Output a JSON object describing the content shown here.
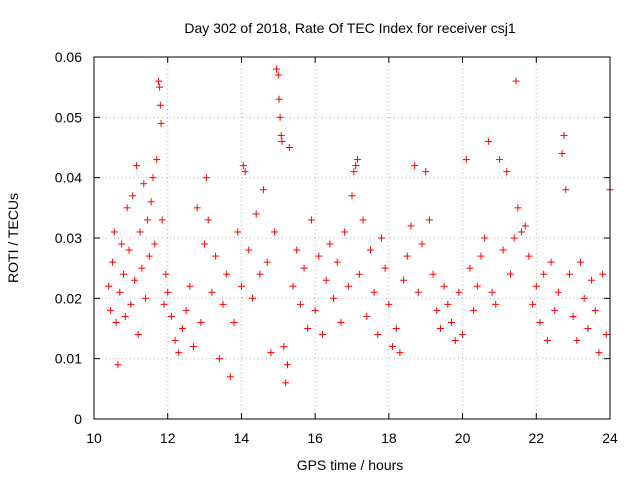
{
  "chart_data": {
    "type": "scatter",
    "title": "Day 302 of 2018, Rate Of TEC Index for receiver csj1",
    "xlabel": "GPS time / hours",
    "ylabel": "ROTI / TECUs",
    "xlim": [
      10,
      24
    ],
    "ylim": [
      0,
      0.06
    ],
    "xticks": [
      10,
      12,
      14,
      16,
      18,
      20,
      22,
      24
    ],
    "xtick_labels": [
      "10",
      "12",
      "14",
      "16",
      "18",
      "20",
      "22",
      "24"
    ],
    "yticks": [
      0,
      0.01,
      0.02,
      0.03,
      0.04,
      0.05,
      0.06
    ],
    "ytick_labels": [
      "0",
      "0.01",
      "0.02",
      "0.03",
      "0.04",
      "0.05",
      "0.06"
    ],
    "grid": true,
    "marker": "+",
    "marker_color": "#ff0000",
    "series": [
      {
        "name": "ROTI",
        "points": [
          [
            10.4,
            0.022
          ],
          [
            10.45,
            0.018
          ],
          [
            10.5,
            0.026
          ],
          [
            10.55,
            0.031
          ],
          [
            10.6,
            0.016
          ],
          [
            10.65,
            0.009
          ],
          [
            10.7,
            0.021
          ],
          [
            10.75,
            0.029
          ],
          [
            10.8,
            0.024
          ],
          [
            10.85,
            0.017
          ],
          [
            10.9,
            0.035
          ],
          [
            10.95,
            0.028
          ],
          [
            11.0,
            0.019
          ],
          [
            11.05,
            0.037
          ],
          [
            11.1,
            0.023
          ],
          [
            11.15,
            0.042
          ],
          [
            11.2,
            0.014
          ],
          [
            11.25,
            0.031
          ],
          [
            11.3,
            0.025
          ],
          [
            11.35,
            0.039
          ],
          [
            11.4,
            0.02
          ],
          [
            11.45,
            0.033
          ],
          [
            11.5,
            0.027
          ],
          [
            11.55,
            0.036
          ],
          [
            11.6,
            0.04
          ],
          [
            11.65,
            0.029
          ],
          [
            11.7,
            0.043
          ],
          [
            11.75,
            0.056
          ],
          [
            11.78,
            0.055
          ],
          [
            11.8,
            0.052
          ],
          [
            11.82,
            0.049
          ],
          [
            11.85,
            0.033
          ],
          [
            11.9,
            0.019
          ],
          [
            11.95,
            0.024
          ],
          [
            12.0,
            0.021
          ],
          [
            12.1,
            0.017
          ],
          [
            12.2,
            0.013
          ],
          [
            12.3,
            0.011
          ],
          [
            12.4,
            0.015
          ],
          [
            12.5,
            0.018
          ],
          [
            12.6,
            0.022
          ],
          [
            12.7,
            0.012
          ],
          [
            12.8,
            0.035
          ],
          [
            12.9,
            0.016
          ],
          [
            13.0,
            0.029
          ],
          [
            13.05,
            0.04
          ],
          [
            13.1,
            0.033
          ],
          [
            13.2,
            0.021
          ],
          [
            13.3,
            0.027
          ],
          [
            13.4,
            0.01
          ],
          [
            13.5,
            0.019
          ],
          [
            13.6,
            0.024
          ],
          [
            13.7,
            0.007
          ],
          [
            13.8,
            0.016
          ],
          [
            13.9,
            0.031
          ],
          [
            14.0,
            0.022
          ],
          [
            14.05,
            0.042
          ],
          [
            14.1,
            0.041
          ],
          [
            14.2,
            0.028
          ],
          [
            14.3,
            0.02
          ],
          [
            14.4,
            0.034
          ],
          [
            14.5,
            0.024
          ],
          [
            14.6,
            0.038
          ],
          [
            14.7,
            0.026
          ],
          [
            14.8,
            0.011
          ],
          [
            14.9,
            0.031
          ],
          [
            14.95,
            0.058
          ],
          [
            15.0,
            0.057
          ],
          [
            15.02,
            0.053
          ],
          [
            15.05,
            0.05
          ],
          [
            15.08,
            0.047
          ],
          [
            15.1,
            0.046
          ],
          [
            15.15,
            0.012
          ],
          [
            15.2,
            0.006
          ],
          [
            15.25,
            0.009
          ],
          [
            15.3,
            0.045
          ],
          [
            15.4,
            0.022
          ],
          [
            15.5,
            0.028
          ],
          [
            15.6,
            0.019
          ],
          [
            15.7,
            0.025
          ],
          [
            15.8,
            0.015
          ],
          [
            15.9,
            0.033
          ],
          [
            16.0,
            0.018
          ],
          [
            16.1,
            0.027
          ],
          [
            16.2,
            0.014
          ],
          [
            16.3,
            0.023
          ],
          [
            16.4,
            0.029
          ],
          [
            16.5,
            0.02
          ],
          [
            16.6,
            0.026
          ],
          [
            16.7,
            0.016
          ],
          [
            16.8,
            0.031
          ],
          [
            16.9,
            0.022
          ],
          [
            17.0,
            0.037
          ],
          [
            17.05,
            0.041
          ],
          [
            17.1,
            0.042
          ],
          [
            17.15,
            0.043
          ],
          [
            17.2,
            0.024
          ],
          [
            17.3,
            0.033
          ],
          [
            17.4,
            0.017
          ],
          [
            17.5,
            0.028
          ],
          [
            17.6,
            0.021
          ],
          [
            17.7,
            0.014
          ],
          [
            17.8,
            0.03
          ],
          [
            17.9,
            0.025
          ],
          [
            18.0,
            0.019
          ],
          [
            18.1,
            0.012
          ],
          [
            18.2,
            0.015
          ],
          [
            18.3,
            0.011
          ],
          [
            18.4,
            0.023
          ],
          [
            18.5,
            0.027
          ],
          [
            18.6,
            0.032
          ],
          [
            18.7,
            0.042
          ],
          [
            18.8,
            0.021
          ],
          [
            18.9,
            0.029
          ],
          [
            19.0,
            0.041
          ],
          [
            19.1,
            0.033
          ],
          [
            19.2,
            0.024
          ],
          [
            19.3,
            0.018
          ],
          [
            19.4,
            0.015
          ],
          [
            19.5,
            0.022
          ],
          [
            19.6,
            0.019
          ],
          [
            19.7,
            0.016
          ],
          [
            19.8,
            0.013
          ],
          [
            19.9,
            0.021
          ],
          [
            20.0,
            0.014
          ],
          [
            20.1,
            0.043
          ],
          [
            20.2,
            0.025
          ],
          [
            20.3,
            0.018
          ],
          [
            20.4,
            0.022
          ],
          [
            20.5,
            0.027
          ],
          [
            20.6,
            0.03
          ],
          [
            20.7,
            0.046
          ],
          [
            20.8,
            0.021
          ],
          [
            20.9,
            0.019
          ],
          [
            21.0,
            0.043
          ],
          [
            21.1,
            0.028
          ],
          [
            21.2,
            0.041
          ],
          [
            21.3,
            0.024
          ],
          [
            21.4,
            0.03
          ],
          [
            21.45,
            0.056
          ],
          [
            21.5,
            0.035
          ],
          [
            21.6,
            0.031
          ],
          [
            21.7,
            0.032
          ],
          [
            21.8,
            0.027
          ],
          [
            21.9,
            0.019
          ],
          [
            22.0,
            0.022
          ],
          [
            22.1,
            0.016
          ],
          [
            22.2,
            0.024
          ],
          [
            22.3,
            0.013
          ],
          [
            22.4,
            0.026
          ],
          [
            22.5,
            0.018
          ],
          [
            22.6,
            0.021
          ],
          [
            22.7,
            0.044
          ],
          [
            22.75,
            0.047
          ],
          [
            22.8,
            0.038
          ],
          [
            22.9,
            0.024
          ],
          [
            23.0,
            0.017
          ],
          [
            23.1,
            0.013
          ],
          [
            23.2,
            0.026
          ],
          [
            23.3,
            0.02
          ],
          [
            23.4,
            0.015
          ],
          [
            23.5,
            0.023
          ],
          [
            23.6,
            0.018
          ],
          [
            23.7,
            0.011
          ],
          [
            23.8,
            0.024
          ],
          [
            23.9,
            0.014
          ],
          [
            24.0,
            0.038
          ]
        ]
      }
    ]
  }
}
